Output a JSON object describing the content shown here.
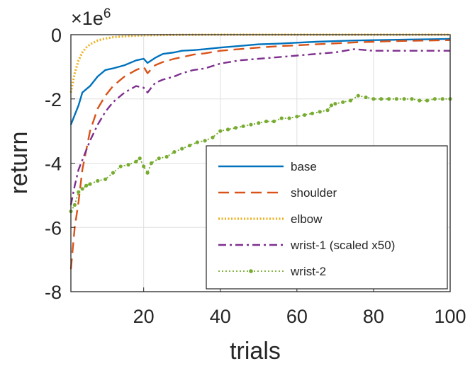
{
  "chart_data": {
    "type": "line",
    "xlabel": "trials",
    "ylabel": "return",
    "y_multiplier_label": "×1e",
    "y_multiplier_exponent": "6",
    "xlim": [
      1,
      100
    ],
    "ylim": [
      -8,
      0
    ],
    "xticks": [
      20,
      40,
      60,
      80,
      100
    ],
    "xtick_labels": [
      "20",
      "40",
      "60",
      "80",
      "100"
    ],
    "yticks": [
      0,
      -2,
      -4,
      -6,
      -8
    ],
    "ytick_labels": [
      "0",
      "-2",
      "-4",
      "-6",
      "-8"
    ],
    "grid": true,
    "legend_position": "bottom-right",
    "series": [
      {
        "name": "base",
        "color": "#0072BD",
        "style": "solid",
        "x": [
          1,
          2,
          3,
          4,
          5,
          6,
          8,
          10,
          12,
          15,
          18,
          20,
          21,
          23,
          25,
          28,
          30,
          33,
          36,
          40,
          45,
          50,
          55,
          60,
          65,
          70,
          75,
          80,
          85,
          90,
          95,
          100
        ],
        "y": [
          -2.8,
          -2.5,
          -2.2,
          -1.8,
          -1.7,
          -1.6,
          -1.3,
          -1.1,
          -1.05,
          -0.95,
          -0.8,
          -0.75,
          -0.88,
          -0.72,
          -0.6,
          -0.55,
          -0.5,
          -0.48,
          -0.45,
          -0.4,
          -0.35,
          -0.3,
          -0.28,
          -0.25,
          -0.22,
          -0.2,
          -0.18,
          -0.17,
          -0.16,
          -0.15,
          -0.14,
          -0.13
        ]
      },
      {
        "name": "shoulder",
        "color": "#D95319",
        "style": "dashed",
        "x": [
          1,
          2,
          3,
          4,
          5,
          6,
          8,
          10,
          12,
          15,
          18,
          20,
          21,
          23,
          25,
          28,
          30,
          33,
          36,
          40,
          45,
          50,
          55,
          60,
          65,
          70,
          75,
          80,
          85,
          90,
          95,
          100
        ],
        "y": [
          -7.3,
          -6.0,
          -5.2,
          -4.2,
          -3.6,
          -3.0,
          -2.3,
          -1.9,
          -1.6,
          -1.3,
          -1.1,
          -1.0,
          -1.2,
          -0.95,
          -0.85,
          -0.75,
          -0.7,
          -0.62,
          -0.58,
          -0.5,
          -0.45,
          -0.4,
          -0.36,
          -0.33,
          -0.3,
          -0.27,
          -0.24,
          -0.22,
          -0.2,
          -0.19,
          -0.18,
          -0.17
        ]
      },
      {
        "name": "elbow",
        "color": "#EDB120",
        "style": "dotted",
        "x": [
          1,
          2,
          3,
          4,
          5,
          6,
          8,
          10,
          12,
          15,
          18,
          20,
          25,
          30,
          40,
          50,
          60,
          70,
          80,
          90,
          100
        ],
        "y": [
          -1.8,
          -1.2,
          -0.8,
          -0.55,
          -0.4,
          -0.3,
          -0.18,
          -0.12,
          -0.08,
          -0.05,
          -0.03,
          -0.02,
          -0.01,
          -0.005,
          0,
          0,
          0,
          0,
          0,
          0,
          0
        ]
      },
      {
        "name": "wrist-1 (scaled x50)",
        "color": "#7E2F8E",
        "style": "dashdot",
        "x": [
          1,
          2,
          3,
          4,
          5,
          6,
          8,
          10,
          12,
          15,
          18,
          20,
          21,
          23,
          25,
          28,
          30,
          33,
          36,
          40,
          45,
          50,
          55,
          60,
          65,
          70,
          75,
          80,
          85,
          90,
          95,
          100
        ],
        "y": [
          -5.3,
          -4.7,
          -4.2,
          -3.9,
          -3.6,
          -3.3,
          -2.8,
          -2.4,
          -2.1,
          -1.8,
          -1.6,
          -1.65,
          -1.8,
          -1.5,
          -1.4,
          -1.3,
          -1.2,
          -1.1,
          -1.05,
          -0.9,
          -0.8,
          -0.75,
          -0.7,
          -0.65,
          -0.6,
          -0.55,
          -0.45,
          -0.5,
          -0.5,
          -0.5,
          -0.5,
          -0.5
        ]
      },
      {
        "name": "wrist-2",
        "color": "#77AC30",
        "style": "dotted-markers",
        "x": [
          1,
          2,
          3,
          4,
          5,
          6,
          8,
          10,
          12,
          14,
          16,
          18,
          19,
          20,
          21,
          22,
          24,
          26,
          28,
          30,
          32,
          34,
          36,
          38,
          40,
          42,
          44,
          46,
          48,
          50,
          52,
          54,
          56,
          58,
          60,
          62,
          64,
          66,
          68,
          69,
          70,
          72,
          74,
          76,
          78,
          80,
          82,
          84,
          86,
          88,
          90,
          92,
          94,
          96,
          98,
          100
        ],
        "y": [
          -5.5,
          -5.3,
          -4.9,
          -4.8,
          -4.7,
          -4.65,
          -4.55,
          -4.5,
          -4.3,
          -4.1,
          -4.05,
          -3.95,
          -3.85,
          -4.1,
          -4.3,
          -4.0,
          -3.85,
          -3.8,
          -3.65,
          -3.55,
          -3.45,
          -3.35,
          -3.3,
          -3.2,
          -3.0,
          -2.95,
          -2.9,
          -2.85,
          -2.8,
          -2.75,
          -2.7,
          -2.7,
          -2.6,
          -2.6,
          -2.55,
          -2.5,
          -2.45,
          -2.4,
          -2.35,
          -2.2,
          -2.15,
          -2.1,
          -2.05,
          -1.9,
          -1.95,
          -2.0,
          -2.0,
          -2.0,
          -2.0,
          -2.0,
          -2.0,
          -2.05,
          -2.05,
          -2.0,
          -2.0,
          -2.0
        ]
      }
    ]
  }
}
